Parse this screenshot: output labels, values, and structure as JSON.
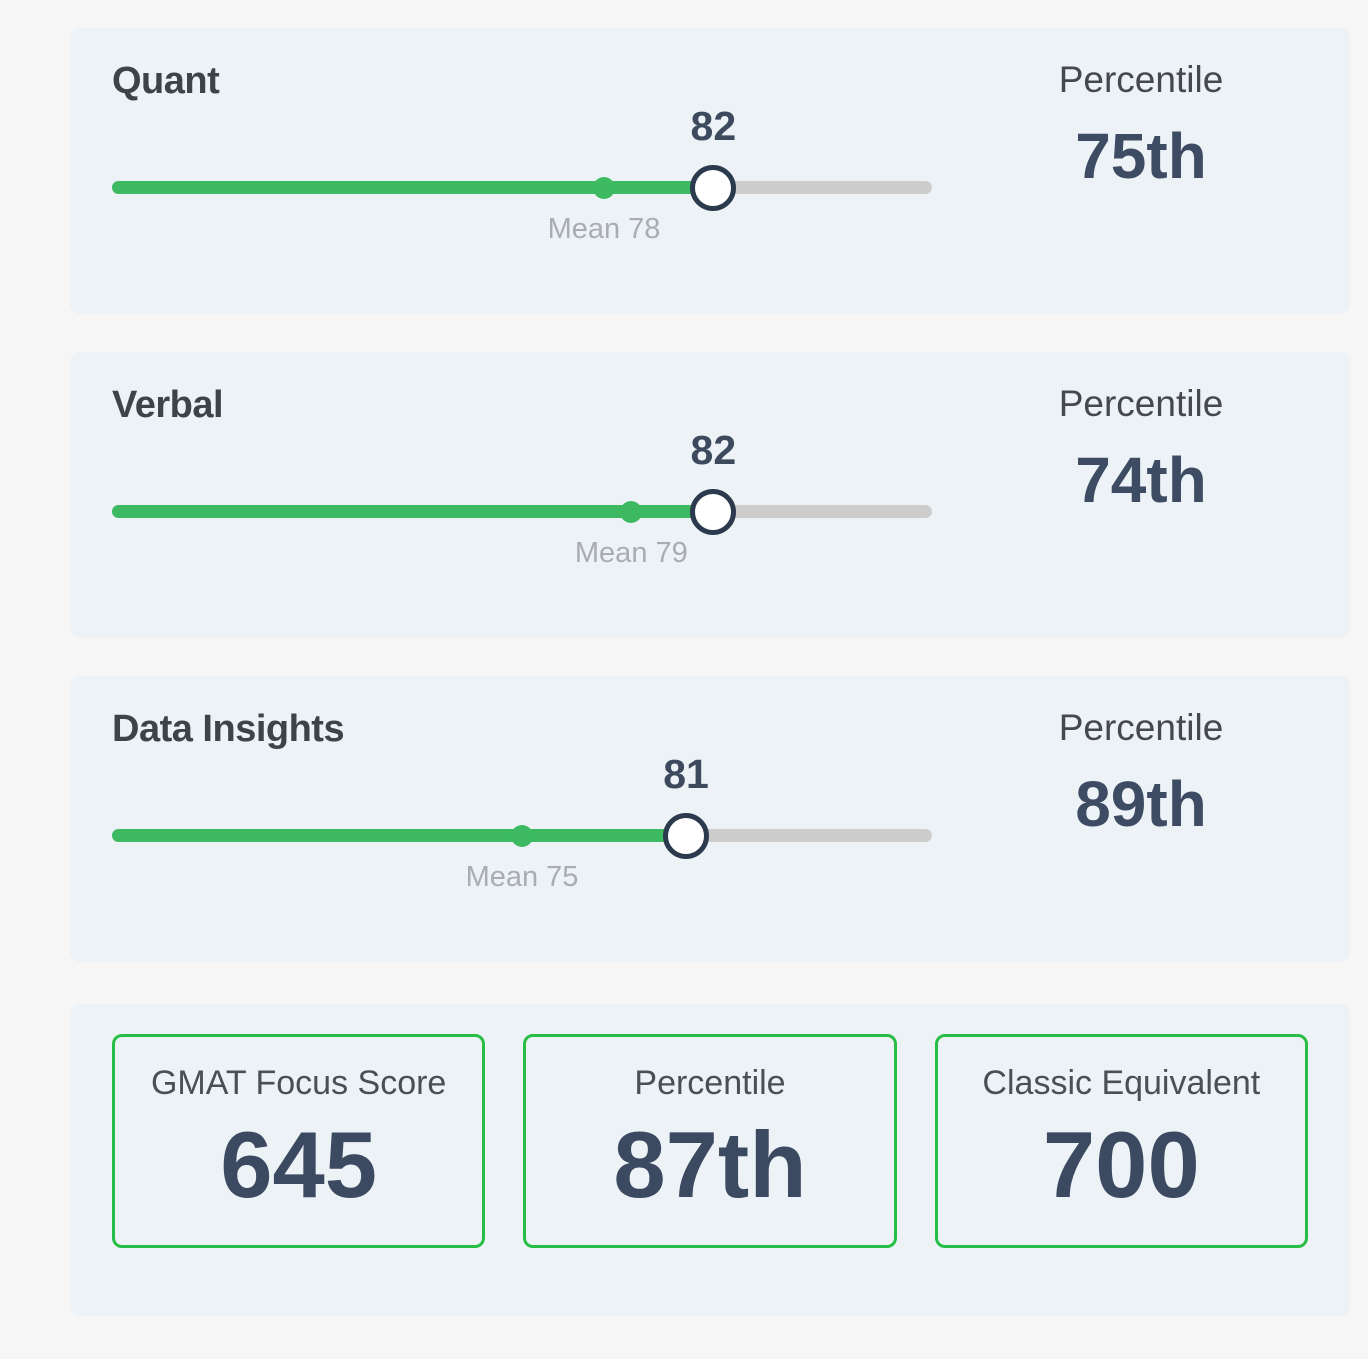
{
  "scale": {
    "min": 60,
    "max": 90
  },
  "sections": [
    {
      "title": "Quant",
      "score": 82,
      "mean": 78,
      "mean_label": "Mean 78",
      "percentile_heading": "Percentile",
      "percentile_value": "75th"
    },
    {
      "title": "Verbal",
      "score": 82,
      "mean": 79,
      "mean_label": "Mean 79",
      "percentile_heading": "Percentile",
      "percentile_value": "74th"
    },
    {
      "title": "Data Insights",
      "score": 81,
      "mean": 75,
      "mean_label": "Mean 75",
      "percentile_heading": "Percentile",
      "percentile_value": "89th"
    }
  ],
  "summary_cards": [
    {
      "label": "GMAT Focus Score",
      "value": "645"
    },
    {
      "label": "Percentile",
      "value": "87th"
    },
    {
      "label": "Classic Equivalent",
      "value": "700"
    }
  ],
  "colors": {
    "page_bg": "#f6f6f7",
    "card_bg": "#edf2f7",
    "slider_green": "#3dba61",
    "track_gray": "#cccccc",
    "handle_border": "#2c3a4d",
    "score_text": "#3d4a5e",
    "title_text": "#3e4348",
    "heading_text": "#45494e",
    "percentile_text": "#3d4c63",
    "mean_text": "#a9adb1",
    "summary_border": "#28be46",
    "summary_label_text": "#4a4f55",
    "summary_value_text": "#3c4a61"
  }
}
